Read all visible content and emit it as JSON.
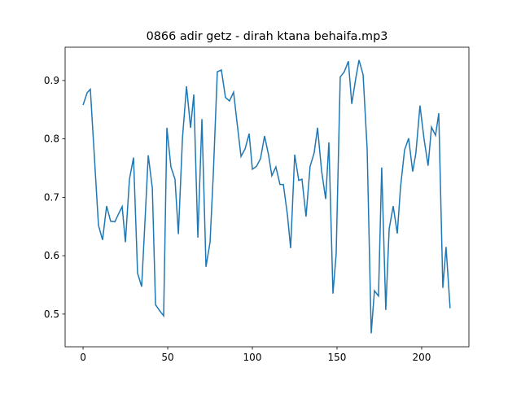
{
  "chart_data": {
    "type": "line",
    "title": "0866 adir getz - dirah ktana behaifa.mp3",
    "color": "#1f77b4",
    "xlim": [
      -10.6,
      227.9
    ],
    "ylim": [
      0.444,
      0.957
    ],
    "xticks": [
      0,
      50,
      100,
      150,
      200
    ],
    "yticks": [
      0.5,
      0.6,
      0.7,
      0.8,
      0.9
    ],
    "x": [
      0,
      2.4,
      4.3,
      9.1,
      11.5,
      13.9,
      16.3,
      18.8,
      21.2,
      23.1,
      25,
      27.4,
      29.8,
      32.2,
      34.6,
      36.5,
      38.5,
      40.9,
      42.8,
      45.2,
      47.6,
      49.5,
      51.9,
      54.3,
      56.3,
      58.7,
      61.1,
      63.5,
      65.4,
      67.8,
      70.2,
      72.6,
      75,
      76.9,
      79.3,
      81.7,
      84.1,
      86.5,
      88.9,
      90.9,
      93.3,
      95.7,
      98.1,
      100,
      102.4,
      104.8,
      107.2,
      109.6,
      111.5,
      113.9,
      116.3,
      118.3,
      120.7,
      122.6,
      125,
      127.4,
      129.3,
      131.7,
      134.1,
      136.5,
      138.5,
      140.9,
      143.3,
      145.2,
      147.6,
      149.5,
      151.9,
      154.3,
      156.7,
      158.7,
      161.1,
      163,
      165.4,
      167.8,
      170.2,
      172.1,
      174.5,
      176.4,
      178.8,
      180.8,
      183.2,
      185.6,
      187.5,
      189.9,
      192.3,
      194.7,
      196.6,
      199,
      201.4,
      203.8,
      205.8,
      208.2,
      210.1,
      212.5,
      214.4,
      216.8
    ],
    "values": [
      0.858,
      0.879,
      0.885,
      0.652,
      0.627,
      0.685,
      0.659,
      0.658,
      0.673,
      0.684,
      0.623,
      0.731,
      0.768,
      0.57,
      0.547,
      0.655,
      0.772,
      0.716,
      0.516,
      0.506,
      0.497,
      0.819,
      0.752,
      0.731,
      0.637,
      0.801,
      0.89,
      0.819,
      0.876,
      0.631,
      0.834,
      0.581,
      0.623,
      0.738,
      0.915,
      0.918,
      0.871,
      0.865,
      0.88,
      0.829,
      0.77,
      0.783,
      0.809,
      0.748,
      0.753,
      0.766,
      0.805,
      0.772,
      0.737,
      0.752,
      0.722,
      0.722,
      0.67,
      0.613,
      0.773,
      0.729,
      0.731,
      0.667,
      0.753,
      0.776,
      0.819,
      0.745,
      0.697,
      0.794,
      0.535,
      0.603,
      0.906,
      0.915,
      0.933,
      0.86,
      0.904,
      0.935,
      0.91,
      0.783,
      0.467,
      0.54,
      0.531,
      0.751,
      0.507,
      0.646,
      0.685,
      0.638,
      0.717,
      0.781,
      0.801,
      0.744,
      0.776,
      0.857,
      0.8,
      0.754,
      0.82,
      0.806,
      0.844,
      0.545,
      0.615,
      0.51
    ]
  }
}
